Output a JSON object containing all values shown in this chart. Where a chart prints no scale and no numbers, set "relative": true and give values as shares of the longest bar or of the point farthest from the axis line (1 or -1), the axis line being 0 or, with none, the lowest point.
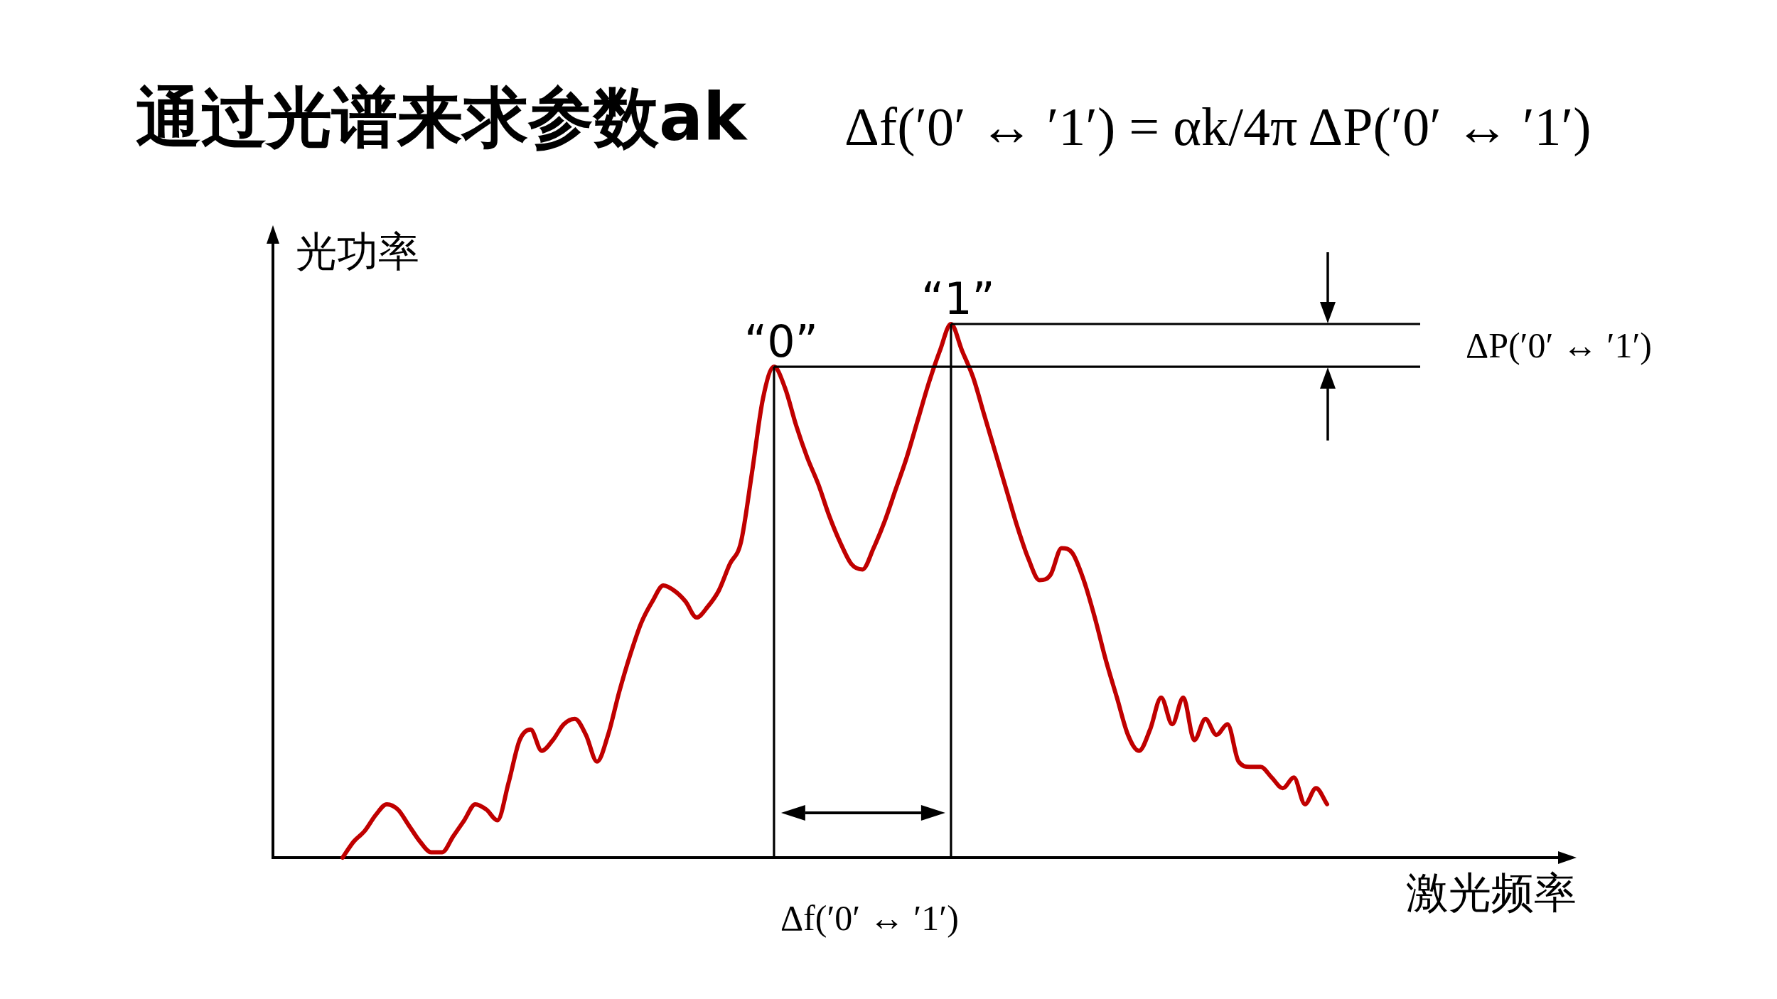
{
  "chart_data": {
    "type": "line",
    "title": "通过光谱来求参数ak",
    "xlabel": "激光频率",
    "ylabel": "光功率",
    "relative": true,
    "categories": [
      null,
      null,
      null,
      null,
      null,
      null,
      null,
      null,
      null,
      null,
      null,
      null,
      null,
      null,
      null,
      null,
      null,
      null,
      null,
      null,
      null,
      null,
      null,
      null,
      null,
      null,
      null,
      null,
      null,
      null,
      null,
      null,
      null,
      null,
      null,
      null,
      null,
      null,
      null,
      null,
      null,
      null,
      null,
      null,
      null,
      null,
      null,
      null,
      null,
      null,
      null,
      null,
      null,
      null,
      null,
      null,
      null,
      null,
      null,
      null,
      null,
      null,
      null,
      null,
      null,
      null,
      null,
      null,
      null,
      null,
      null,
      null,
      null,
      null,
      null,
      null,
      null,
      null,
      null,
      null,
      null,
      null,
      null,
      null,
      null,
      null,
      null,
      null,
      null,
      null
    ],
    "series": [
      {
        "color": "#c00000",
        "values": [
          0.0,
          0.03,
          0.05,
          0.08,
          0.1,
          0.09,
          0.06,
          0.03,
          0.01,
          0.01,
          0.04,
          0.07,
          0.1,
          0.09,
          0.07,
          0.14,
          0.22,
          0.24,
          0.2,
          0.22,
          0.25,
          0.26,
          0.23,
          0.18,
          0.23,
          0.31,
          0.38,
          0.44,
          0.48,
          0.51,
          0.5,
          0.48,
          0.45,
          0.47,
          0.5,
          0.55,
          0.59,
          0.72,
          0.86,
          0.92,
          0.88,
          0.81,
          0.75,
          0.7,
          0.64,
          0.59,
          0.55,
          0.54,
          0.58,
          0.63,
          0.69,
          0.75,
          0.82,
          0.89,
          0.95,
          1.0,
          0.95,
          0.9,
          0.83,
          0.76,
          0.69,
          0.62,
          0.56,
          0.52,
          0.53,
          0.58,
          0.57,
          0.52,
          0.45,
          0.37,
          0.3,
          0.23,
          0.2,
          0.24,
          0.3,
          0.25,
          0.3,
          0.22,
          0.26,
          0.23,
          0.25,
          0.18,
          0.17,
          0.17,
          0.15,
          0.13,
          0.15,
          0.1,
          0.13,
          0.1
        ]
      }
    ],
    "annotations": [
      "Δf(′0′ ↔ ′1′) = αk/4π ΔP(′0′ ↔ ′1′)",
      "“0”",
      "“1”",
      "ΔP(′0′ ↔ ′1′)",
      "Δf(′0′ ↔ ′1′)"
    ]
  }
}
